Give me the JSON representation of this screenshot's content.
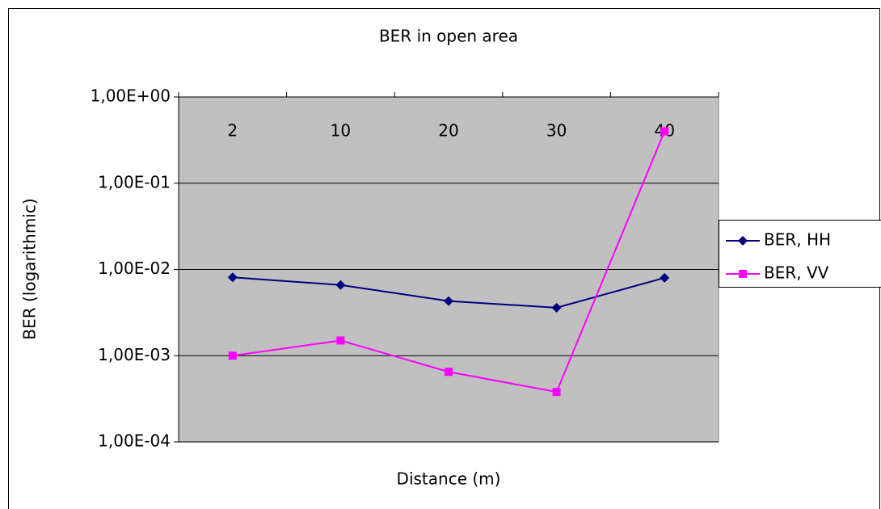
{
  "chart_data": {
    "type": "line",
    "title": "BER in open area",
    "x_label": "Distance (m)",
    "y_label": "BER (logarithmic)",
    "categories": [
      "2",
      "10",
      "20",
      "30",
      "40"
    ],
    "series": [
      {
        "name": "BER, HH",
        "color": "#000080",
        "marker": "diamond",
        "values": [
          0.0081,
          0.0066,
          0.0043,
          0.0036,
          0.008
        ]
      },
      {
        "name": "BER, VV",
        "color": "#ff00ff",
        "marker": "square",
        "values": [
          0.001,
          0.0015,
          0.00065,
          0.00038,
          0.4
        ]
      }
    ],
    "log_scale": true,
    "ylim": [
      0.0001,
      1
    ],
    "yticks": [
      {
        "value": 1,
        "label": "1,00E+00"
      },
      {
        "value": 0.1,
        "label": "1,00E-01"
      },
      {
        "value": 0.01,
        "label": "1,00E-02"
      },
      {
        "value": 0.001,
        "label": "1,00E-03"
      },
      {
        "value": 0.0001,
        "label": "1,00E-04"
      }
    ],
    "grid": true,
    "legend": "right"
  }
}
